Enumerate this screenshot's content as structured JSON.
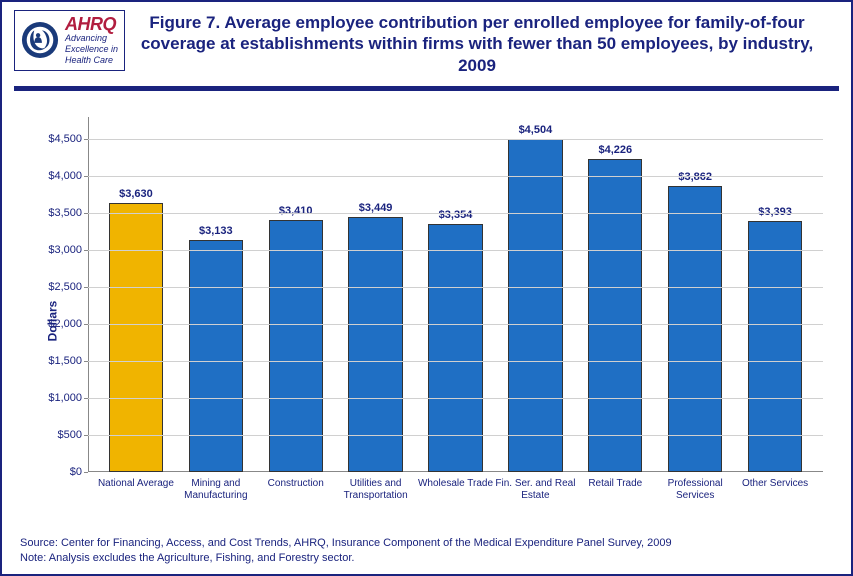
{
  "title": "Figure 7. Average employee contribution per enrolled employee for family-of-four coverage at establishments within firms with fewer than 50 employees, by industry, 2009",
  "logo": {
    "brand": "AHRQ",
    "tag1": "Advancing",
    "tag2": "Excellence in",
    "tag3": "Health Care"
  },
  "chart": {
    "type": "bar",
    "y_axis_title": "Dollars",
    "ylim": [
      0,
      4800
    ],
    "y_ticks": [
      0,
      500,
      1000,
      1500,
      2000,
      2500,
      3000,
      3500,
      4000,
      4500
    ],
    "y_tick_labels": [
      "$0",
      "$500",
      "$1,000",
      "$1,500",
      "$2,000",
      "$2,500",
      "$3,000",
      "$3,500",
      "$4,000",
      "$4,500"
    ],
    "background_color": "#ffffff",
    "grid_color": "#d0d0d0",
    "axis_color": "#888888",
    "text_color": "#1a237e",
    "bar_border_color": "#333333",
    "title_fontsize": 17,
    "label_fontsize": 11,
    "categories": [
      {
        "label": "National Average",
        "value": 3630,
        "display": "$3,630",
        "color": "#f0b400"
      },
      {
        "label": "Mining and Manufacturing",
        "value": 3133,
        "display": "$3,133",
        "color": "#1f6fc4"
      },
      {
        "label": "Construction",
        "value": 3410,
        "display": "$3,410",
        "color": "#1f6fc4"
      },
      {
        "label": "Utilities and Transportation",
        "value": 3449,
        "display": "$3,449",
        "color": "#1f6fc4"
      },
      {
        "label": "Wholesale Trade",
        "value": 3354,
        "display": "$3,354",
        "color": "#1f6fc4"
      },
      {
        "label": "Fin. Ser. and Real Estate",
        "value": 4504,
        "display": "$4,504",
        "color": "#1f6fc4"
      },
      {
        "label": "Retail Trade",
        "value": 4226,
        "display": "$4,226",
        "color": "#1f6fc4"
      },
      {
        "label": "Professional Services",
        "value": 3862,
        "display": "$3,862",
        "color": "#1f6fc4"
      },
      {
        "label": "Other Services",
        "value": 3393,
        "display": "$3,393",
        "color": "#1f6fc4"
      }
    ]
  },
  "footer": {
    "source": "Source: Center for Financing, Access, and Cost Trends, AHRQ, Insurance Component of the Medical Expenditure Panel Survey, 2009",
    "note": "Note: Analysis excludes the Agriculture, Fishing, and Forestry sector."
  }
}
